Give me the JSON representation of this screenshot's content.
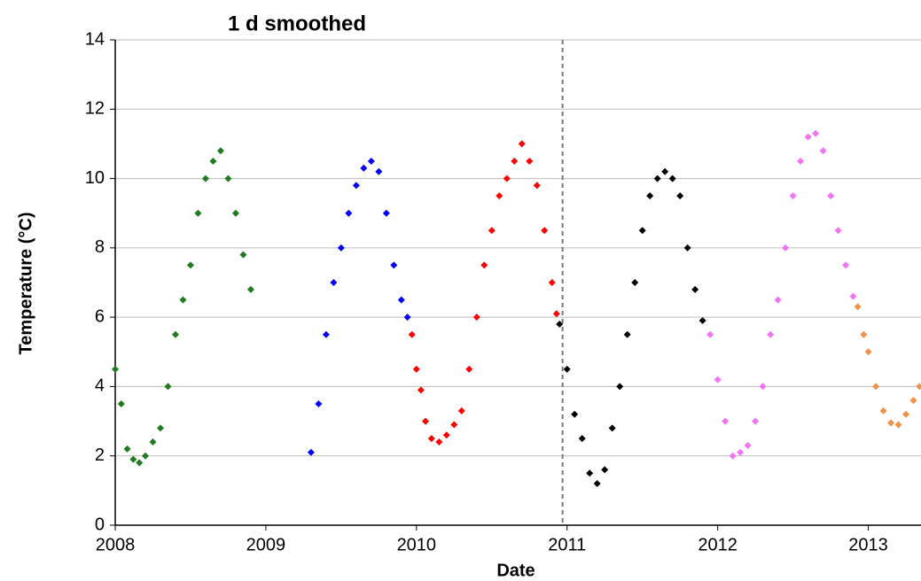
{
  "chart_data": {
    "type": "scatter",
    "title": "1 d smoothed",
    "x_label": "Date",
    "y_label": "Temperature (°C)",
    "xlim": [
      2008,
      2013.35
    ],
    "ylim": [
      0,
      14
    ],
    "xticks": [
      2008,
      2009,
      2010,
      2011,
      2012,
      2013
    ],
    "yticks": [
      0,
      2,
      4,
      6,
      8,
      10,
      12,
      14
    ],
    "grid": true,
    "vline": 2010.97,
    "series": [
      {
        "color": "#1e7b1e",
        "x": [
          2008.0,
          2008.04,
          2008.08,
          2008.12,
          2008.16,
          2008.2,
          2008.25,
          2008.3,
          2008.35,
          2008.4,
          2008.45,
          2008.5,
          2008.55,
          2008.6,
          2008.65,
          2008.7,
          2008.75,
          2008.8,
          2008.85,
          2008.9
        ],
        "values": [
          4.5,
          3.5,
          2.2,
          1.9,
          1.8,
          2.0,
          2.4,
          2.8,
          4.0,
          5.5,
          6.5,
          7.5,
          9.0,
          10.0,
          10.5,
          10.8,
          10.0,
          9.0,
          7.8,
          6.8
        ]
      },
      {
        "color": "#0000ff",
        "x": [
          2009.3,
          2009.35,
          2009.4,
          2009.45,
          2009.5,
          2009.55,
          2009.6,
          2009.65,
          2009.7,
          2009.75,
          2009.8,
          2009.85,
          2009.9,
          2009.94
        ],
        "values": [
          2.1,
          3.5,
          5.5,
          7.0,
          8.0,
          9.0,
          9.8,
          10.3,
          10.5,
          10.2,
          9.0,
          7.5,
          6.5,
          6.0
        ]
      },
      {
        "color": "#ff0000",
        "x": [
          2009.97,
          2010.0,
          2010.03,
          2010.06,
          2010.1,
          2010.15,
          2010.2,
          2010.25,
          2010.3,
          2010.35,
          2010.4,
          2010.45,
          2010.5,
          2010.55,
          2010.6,
          2010.65,
          2010.7,
          2010.75,
          2010.8,
          2010.85,
          2010.9,
          2010.93
        ],
        "values": [
          5.5,
          4.5,
          3.9,
          3.0,
          2.5,
          2.4,
          2.6,
          2.9,
          3.3,
          4.5,
          6.0,
          7.5,
          8.5,
          9.5,
          10.0,
          10.5,
          11.0,
          10.5,
          9.8,
          8.5,
          7.0,
          6.1
        ]
      },
      {
        "color": "#000000",
        "x": [
          2010.95,
          2011.0,
          2011.05,
          2011.1,
          2011.15,
          2011.2,
          2011.25,
          2011.3,
          2011.35,
          2011.4,
          2011.45,
          2011.5,
          2011.55,
          2011.6,
          2011.65,
          2011.7,
          2011.75,
          2011.8,
          2011.85,
          2011.9
        ],
        "values": [
          5.8,
          4.5,
          3.2,
          2.5,
          1.5,
          1.2,
          1.6,
          2.8,
          4.0,
          5.5,
          7.0,
          8.5,
          9.5,
          10.0,
          10.2,
          10.0,
          9.5,
          8.0,
          6.8,
          5.9
        ]
      },
      {
        "color": "#f472f4",
        "x": [
          2011.95,
          2012.0,
          2012.05,
          2012.1,
          2012.15,
          2012.2,
          2012.25,
          2012.3,
          2012.35,
          2012.4,
          2012.45,
          2012.5,
          2012.55,
          2012.6,
          2012.65,
          2012.7,
          2012.75,
          2012.8,
          2012.85,
          2012.9
        ],
        "values": [
          5.5,
          4.2,
          3.0,
          2.0,
          2.1,
          2.3,
          3.0,
          4.0,
          5.5,
          6.5,
          8.0,
          9.5,
          10.5,
          11.2,
          11.3,
          10.8,
          9.5,
          8.5,
          7.5,
          6.6
        ]
      },
      {
        "color": "#f0924a",
        "x": [
          2012.93,
          2012.97,
          2013.0,
          2013.05,
          2013.1,
          2013.15,
          2013.2,
          2013.25,
          2013.3,
          2013.34
        ],
        "values": [
          6.3,
          5.5,
          5.0,
          4.0,
          3.3,
          2.95,
          2.9,
          3.2,
          3.6,
          4.0
        ]
      }
    ]
  }
}
